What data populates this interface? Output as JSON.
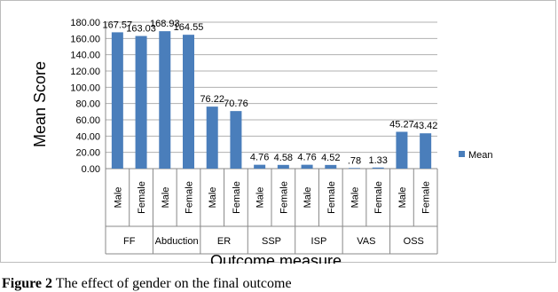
{
  "chart_data": {
    "type": "bar",
    "ylabel": "Mean Score",
    "xlabel": "Outcome measure",
    "ylim": [
      0,
      180
    ],
    "yticks": [
      "0.00",
      "20.00",
      "40.00",
      "60.00",
      "80.00",
      "100.00",
      "120.00",
      "140.00",
      "160.00",
      "180.00"
    ],
    "grid": true,
    "legend_position": "right",
    "groups": [
      "FF",
      "Abduction",
      "ER",
      "SSP",
      "ISP",
      "VAS",
      "OSS"
    ],
    "categories": [
      "Male",
      "Female",
      "Male",
      "Female",
      "Male",
      "Female",
      "Male",
      "Female",
      "Male",
      "Female",
      "Male",
      "Female",
      "Male",
      "Female"
    ],
    "series": [
      {
        "name": "Mean",
        "color": "#4a7ebb",
        "values": [
          167.57,
          163.03,
          168.93,
          164.55,
          76.22,
          70.76,
          4.76,
          4.58,
          4.76,
          4.52,
          0.78,
          1.33,
          45.27,
          43.42
        ],
        "value_labels": [
          "167.57",
          "163.03",
          "168.93",
          "164.55",
          "76.22",
          "70.76",
          "4.76",
          "4.58",
          "4.76",
          "4.52",
          ".78",
          "1.33",
          "45.27",
          "43.42"
        ]
      }
    ]
  },
  "caption": {
    "label": "Figure 2",
    "text": " The effect of gender on the final outcome"
  }
}
